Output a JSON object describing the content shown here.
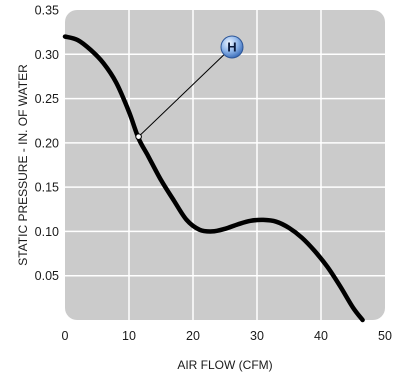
{
  "chart_data": {
    "type": "line",
    "title": "",
    "xlabel": "AIR FLOW (CFM)",
    "ylabel": "STATIC PRESSURE - IN. OF WATER",
    "xlim": [
      0,
      50
    ],
    "ylim": [
      0,
      0.35
    ],
    "x_ticks": [
      "0",
      "10",
      "20",
      "30",
      "40",
      "50"
    ],
    "y_ticks": [
      "0.05",
      "0.10",
      "0.15",
      "0.20",
      "0.25",
      "0.30",
      "0.35"
    ],
    "grid": true,
    "colors": {
      "plot_bg": "#cbcbcb",
      "grid": "#ffffff",
      "line": "#000000",
      "marker": "#4a7fc8"
    },
    "series": [
      {
        "name": "",
        "x": [
          0,
          2,
          4,
          6,
          8,
          10,
          11.5,
          13,
          15,
          17,
          19,
          21,
          23,
          25,
          27,
          29,
          31,
          33,
          35,
          37,
          39,
          41,
          43,
          45,
          46.5
        ],
        "y": [
          0.32,
          0.316,
          0.305,
          0.29,
          0.268,
          0.235,
          0.205,
          0.185,
          0.158,
          0.135,
          0.113,
          0.102,
          0.1,
          0.103,
          0.108,
          0.112,
          0.113,
          0.111,
          0.104,
          0.093,
          0.078,
          0.06,
          0.038,
          0.014,
          0.0
        ]
      }
    ],
    "annotation": {
      "label": "H",
      "point": {
        "x": 11.5,
        "y": 0.207
      }
    }
  }
}
